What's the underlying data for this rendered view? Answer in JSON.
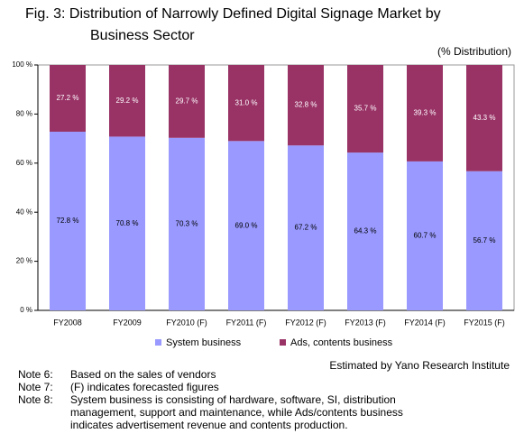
{
  "chart_data": {
    "type": "stacked_bar",
    "title": "Fig. 3: Distribution of Narrowly Defined Digital Signage Market by Business Sector",
    "unit_label": "(% Distribution)",
    "categories": [
      "FY2008",
      "FY2009",
      "FY2010 (F)",
      "FY2011 (F)",
      "FY2012 (F)",
      "FY2013 (F)",
      "FY2014 (F)",
      "FY2015 (F)"
    ],
    "series": [
      {
        "name": "System business",
        "color": "#9999ff",
        "values": [
          72.8,
          70.8,
          70.3,
          69.0,
          67.2,
          64.3,
          60.7,
          56.7
        ],
        "value_labels": [
          "72.8 %",
          "70.8 %",
          "70.3 %",
          "69.0 %",
          "67.2 %",
          "64.3 %",
          "60.7 %",
          "56.7 %"
        ]
      },
      {
        "name": "Ads, contents business",
        "color": "#993366",
        "values": [
          27.2,
          29.2,
          29.7,
          31.0,
          32.8,
          35.7,
          39.3,
          43.3
        ],
        "value_labels": [
          "27.2 %",
          "29.2 %",
          "29.7 %",
          "31.0 %",
          "32.8 %",
          "35.7 %",
          "39.3 %",
          "43.3 %"
        ]
      }
    ],
    "ylim": [
      0,
      100
    ],
    "yticks": [
      {
        "value": 0,
        "label": "0 %"
      },
      {
        "value": 20,
        "label": "20 %"
      },
      {
        "value": 40,
        "label": "40 %"
      },
      {
        "value": 60,
        "label": "60 %"
      },
      {
        "value": 80,
        "label": "80 %"
      },
      {
        "value": 100,
        "label": "100 %"
      }
    ],
    "legend": "bottom",
    "source": "Estimated by Yano Research Institute",
    "notes": [
      {
        "label": "Note 6:",
        "text": "Based on the sales of vendors"
      },
      {
        "label": "Note 7:",
        "text": "(F) indicates forecasted figures"
      },
      {
        "label": "Note 8:",
        "text": "System business is consisting of hardware, software, SI, distribution management, support and maintenance, while Ads/contents business indicates advertisement revenue and contents production."
      }
    ]
  }
}
